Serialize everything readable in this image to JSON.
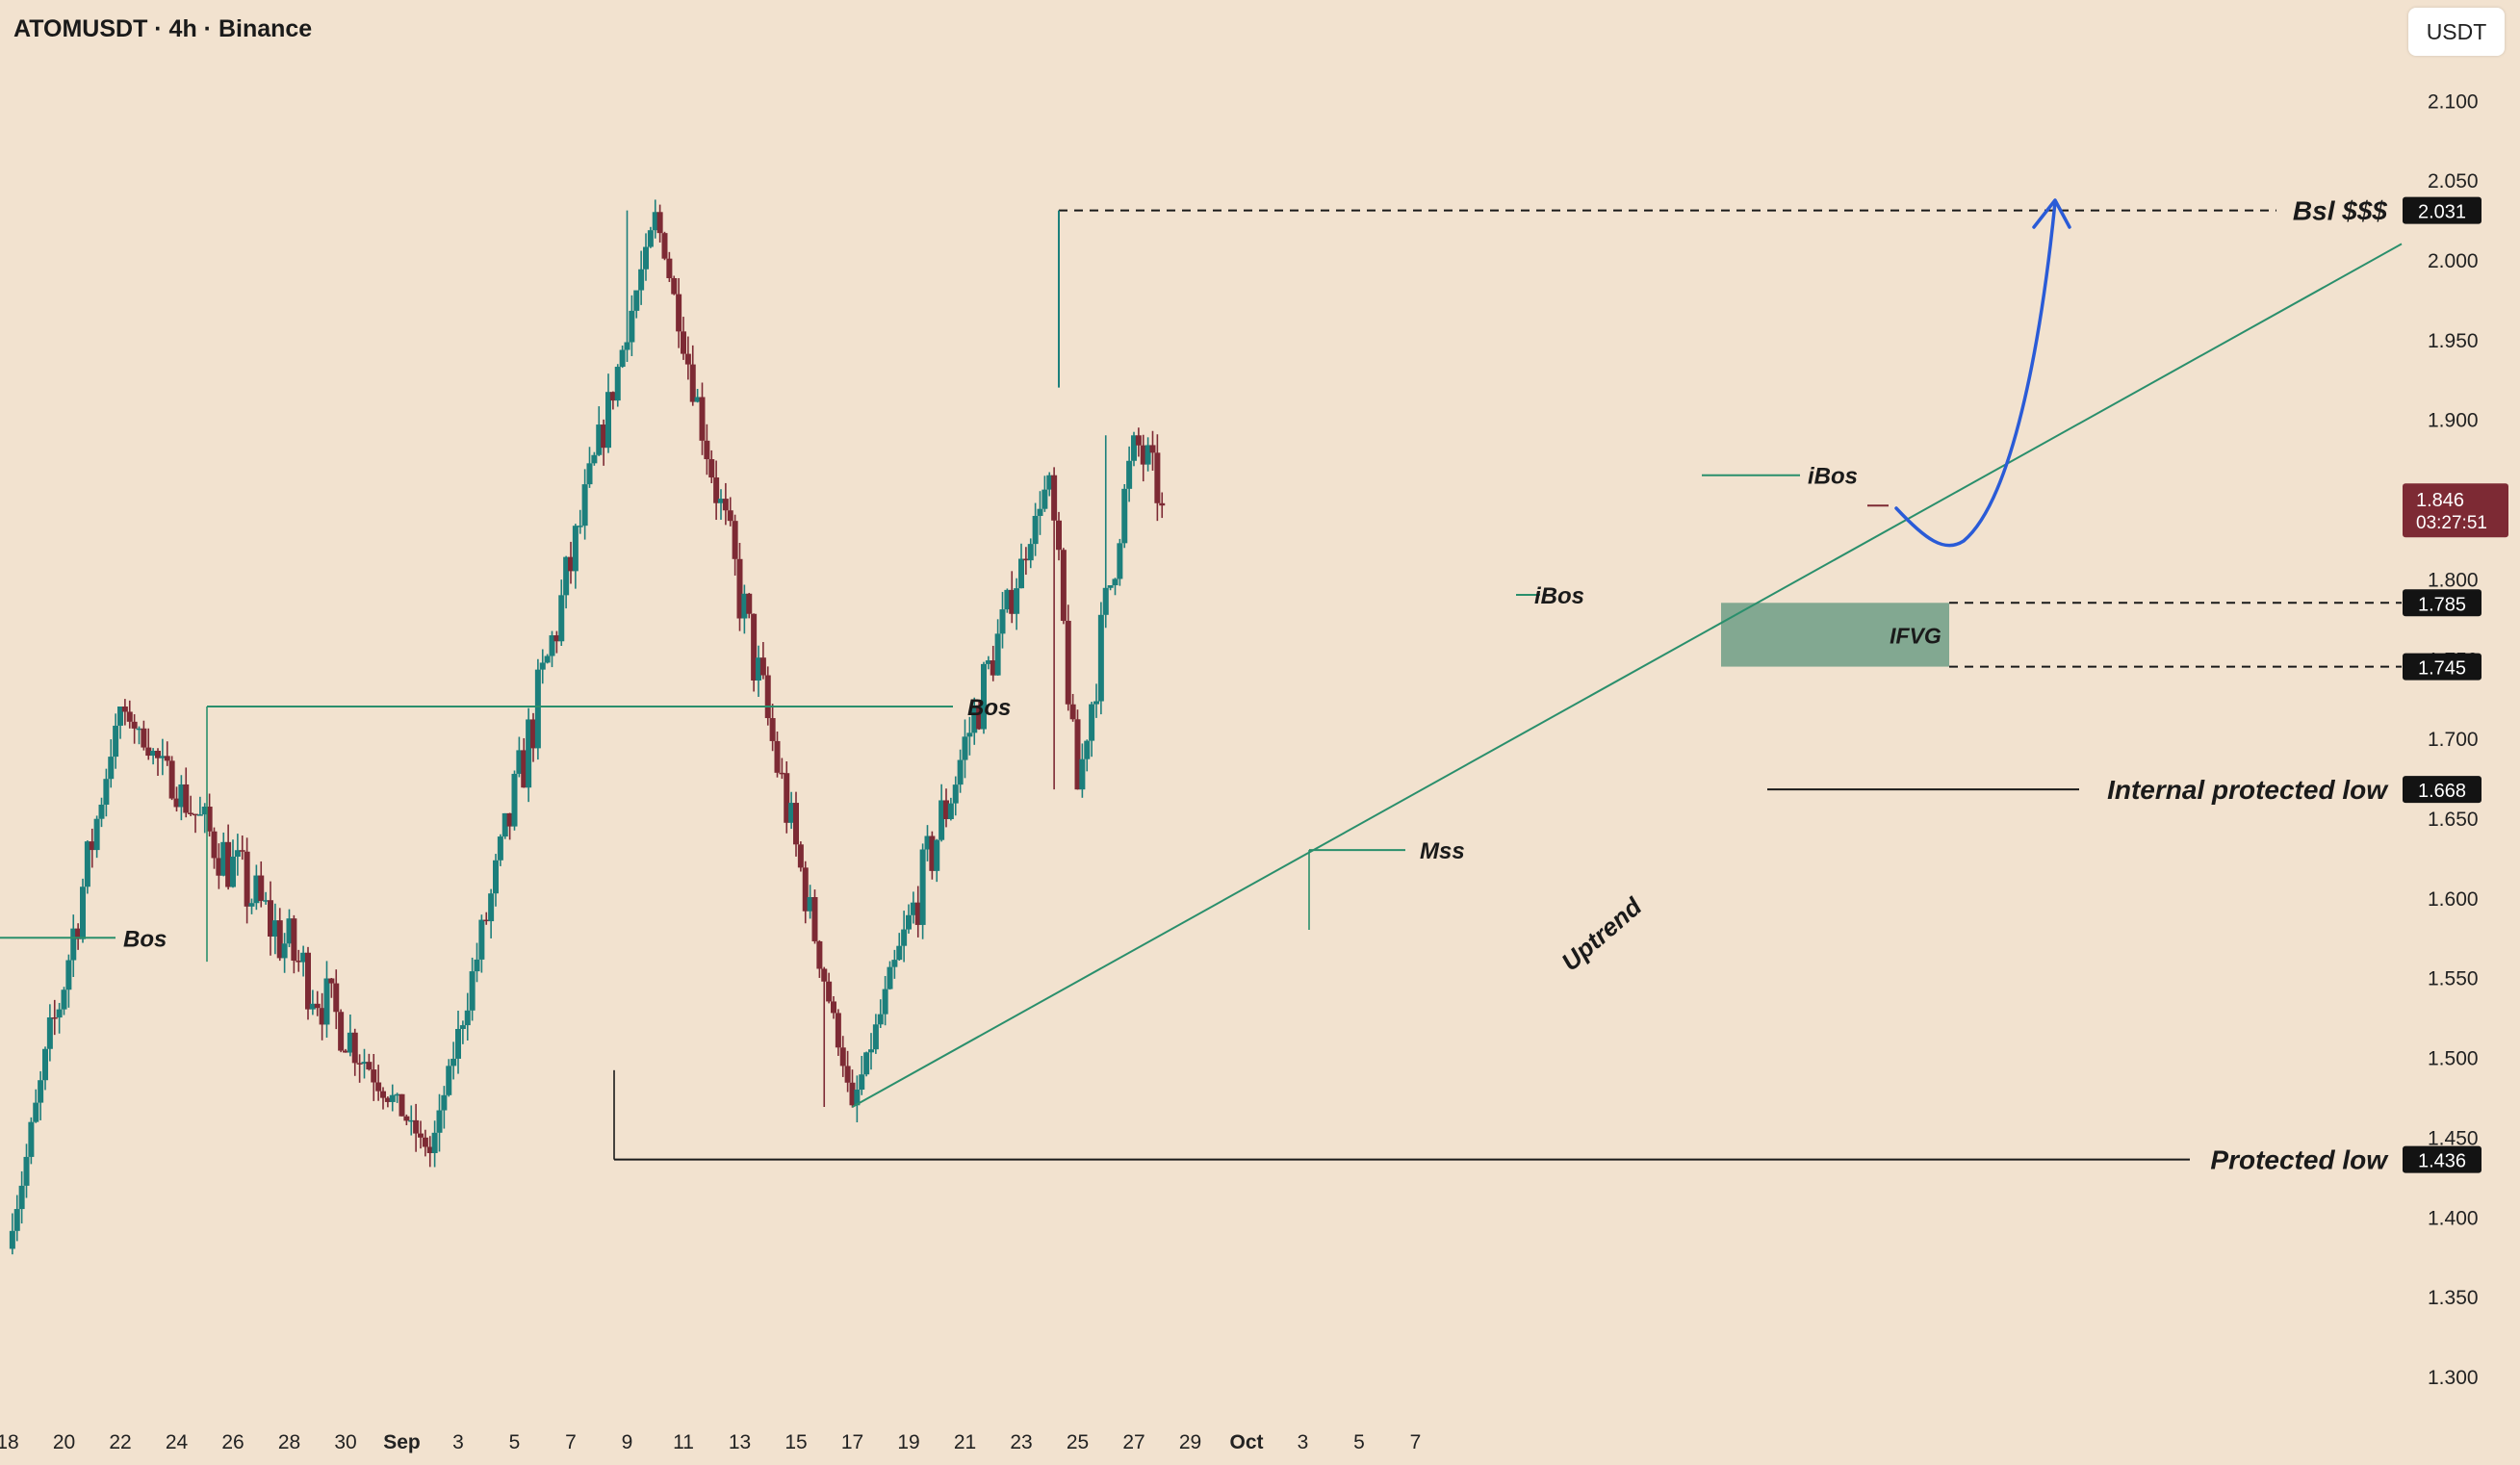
{
  "header": {
    "title": "ATOMUSDT · 4h · Binance",
    "currency_button": "USDT"
  },
  "chart_data": {
    "type": "candlestick",
    "symbol": "ATOMUSDT",
    "interval": "4h",
    "exchange": "Binance",
    "y_axis": {
      "range": [
        1.265,
        2.155
      ],
      "ticks": [
        "1.300",
        "1.350",
        "1.400",
        "1.450",
        "1.500",
        "1.550",
        "1.600",
        "1.650",
        "1.700",
        "1.750",
        "1.800",
        "1.850",
        "1.900",
        "1.950",
        "2.000",
        "2.050",
        "2.100"
      ]
    },
    "x_axis": {
      "range": [
        "Aug 18",
        "Oct 7"
      ],
      "tick_labels": [
        "18",
        "20",
        "22",
        "24",
        "26",
        "28",
        "30",
        "Sep",
        "3",
        "5",
        "7",
        "9",
        "11",
        "13",
        "15",
        "17",
        "19",
        "21",
        "23",
        "25",
        "27",
        "29",
        "Oct",
        "3",
        "5",
        "7"
      ]
    },
    "colors": {
      "up": "#1c7f7c",
      "down": "#7d2a34",
      "background": "#f2e2cf",
      "zone": "#6f9e86",
      "projection": "#2a5bd7"
    },
    "price_line": {
      "value": 1.846,
      "label": "1.846",
      "countdown": "03:27:51",
      "color": "#7d2a34"
    },
    "price_levels": [
      {
        "value": 2.031,
        "label": "2.031",
        "name": "Bsl $$$"
      },
      {
        "value": 1.785,
        "label": "1.785",
        "name": ""
      },
      {
        "value": 1.745,
        "label": "1.745",
        "name": ""
      },
      {
        "value": 1.668,
        "label": "1.668",
        "name": "Internal protected low"
      },
      {
        "value": 1.436,
        "label": "1.436",
        "name": "Protected low"
      }
    ],
    "annotations": [
      "Bos",
      "Bos",
      "Mss",
      "iBos",
      "iBos",
      "IFVG",
      "Uptrend"
    ],
    "zone": {
      "name": "IFVG",
      "from": 1.745,
      "to": 1.785
    },
    "trendline": {
      "name": "Uptrend",
      "from": {
        "date": "Sep 16",
        "price": 1.469
      },
      "to": {
        "date": "Oct 7",
        "price": 2.01
      }
    },
    "projection": "dip to ~1.79 then rally to 2.031",
    "key_swings": [
      {
        "date": "Aug 18",
        "price": 1.38
      },
      {
        "date": "Aug 22",
        "price": 1.72
      },
      {
        "date": "Sep 1",
        "price": 1.44
      },
      {
        "date": "Sep 9",
        "price": 2.03
      },
      {
        "date": "Sep 16",
        "price": 1.47
      },
      {
        "date": "Sep 23",
        "price": 1.865
      },
      {
        "date": "Sep 24",
        "price": 1.668
      },
      {
        "date": "Sep 26",
        "price": 1.89
      },
      {
        "date": "Sep 27",
        "price": 1.846
      }
    ]
  }
}
